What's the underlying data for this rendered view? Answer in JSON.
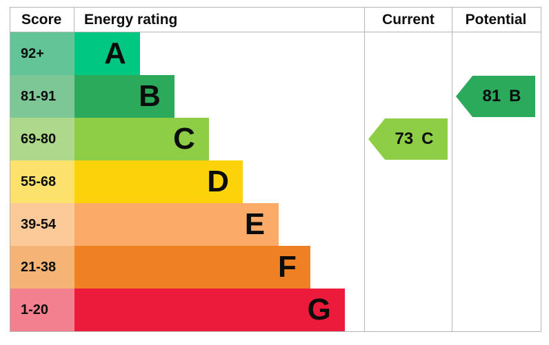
{
  "table": {
    "headers": {
      "score": "Score",
      "energy_rating": "Energy rating",
      "current": "Current",
      "potential": "Potential"
    }
  },
  "chart_data": {
    "type": "bar",
    "title": "EPC energy efficiency rating chart",
    "categories": [
      "A",
      "B",
      "C",
      "D",
      "E",
      "F",
      "G"
    ],
    "bands": [
      {
        "score": "92+",
        "letter": "A",
        "bar_color": "#00c781",
        "score_color": "#63c498"
      },
      {
        "score": "81-91",
        "letter": "B",
        "bar_color": "#2baa5b",
        "score_color": "#7cc795"
      },
      {
        "score": "69-80",
        "letter": "C",
        "bar_color": "#8dce46",
        "score_color": "#aed98a"
      },
      {
        "score": "55-68",
        "letter": "D",
        "bar_color": "#fcd20a",
        "score_color": "#fce26d"
      },
      {
        "score": "39-54",
        "letter": "E",
        "bar_color": "#fcaa67",
        "score_color": "#fcc998"
      },
      {
        "score": "21-38",
        "letter": "F",
        "bar_color": "#ef8023",
        "score_color": "#f5b476"
      },
      {
        "score": "1-20",
        "letter": "G",
        "bar_color": "#ec1a3b",
        "score_color": "#f3808f"
      }
    ],
    "current": {
      "value": "73",
      "letter": "C",
      "band": "C",
      "color": "#8dce46"
    },
    "potential": {
      "value": "81",
      "letter": "B",
      "band": "B",
      "color": "#2baa5b"
    }
  }
}
